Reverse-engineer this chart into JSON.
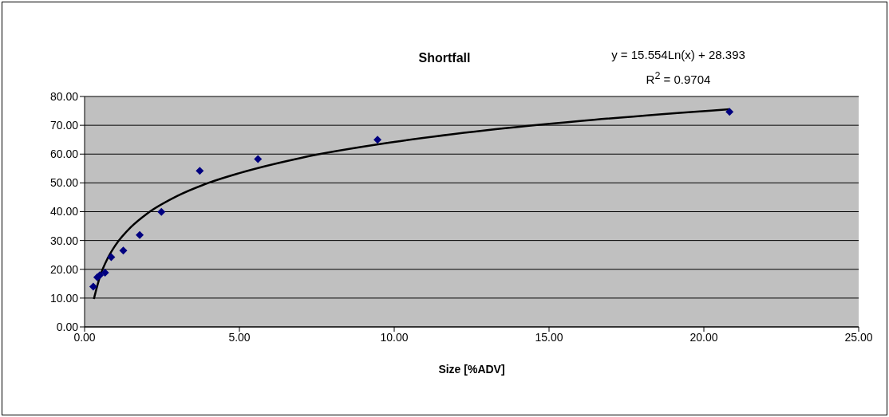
{
  "chart_data": {
    "type": "scatter",
    "title": "Shortfall",
    "xlabel": "Size [%ADV]",
    "annotations": [
      "y = 15.554Ln(x) + 28.393",
      "R$^{2}$ = 0.9704"
    ],
    "series": [
      {
        "color": "#000080",
        "marker": "diamond",
        "x": [
          0.28,
          0.41,
          0.49,
          0.66,
          0.86,
          1.25,
          1.78,
          2.48,
          3.72,
          5.6,
          9.46,
          20.83
        ],
        "values": [
          14.0,
          17.2,
          17.9,
          18.8,
          24.2,
          26.5,
          31.9,
          39.9,
          54.2,
          58.3,
          65.0,
          74.7
        ]
      },
      {
        "type": "line",
        "color": "#000000",
        "marker": "none",
        "line_style": "solid",
        "x": [
          0.3,
          0.5,
          0.75,
          1,
          1.5,
          2,
          3,
          4,
          5,
          7,
          10,
          13,
          16,
          20.83
        ],
        "values": [
          9.7,
          17.6,
          23.9,
          28.4,
          34.7,
          39.2,
          45.5,
          50.0,
          53.4,
          58.7,
          64.2,
          68.3,
          71.5,
          75.6
        ]
      }
    ],
    "xlim": [
      0,
      25
    ],
    "xticks": [
      {
        "value": 0,
        "label": "0.00"
      },
      {
        "value": 5,
        "label": "5.00"
      },
      {
        "value": 10,
        "label": "10.00"
      },
      {
        "value": 15,
        "label": "15.00"
      },
      {
        "value": 20,
        "label": "20.00"
      },
      {
        "value": 25,
        "label": "25.00"
      }
    ],
    "ylim": [
      0,
      80
    ],
    "yticks": [
      {
        "value": 0,
        "label": "0.00"
      },
      {
        "value": 10,
        "label": "10.00"
      },
      {
        "value": 20,
        "label": "20.00"
      },
      {
        "value": 30,
        "label": "30.00"
      },
      {
        "value": 40,
        "label": "40.00"
      },
      {
        "value": 50,
        "label": "50.00"
      },
      {
        "value": 60,
        "label": "60.00"
      },
      {
        "value": 70,
        "label": "70.00"
      },
      {
        "value": 80,
        "label": "80.00"
      }
    ],
    "grid": "y",
    "legend": false
  }
}
